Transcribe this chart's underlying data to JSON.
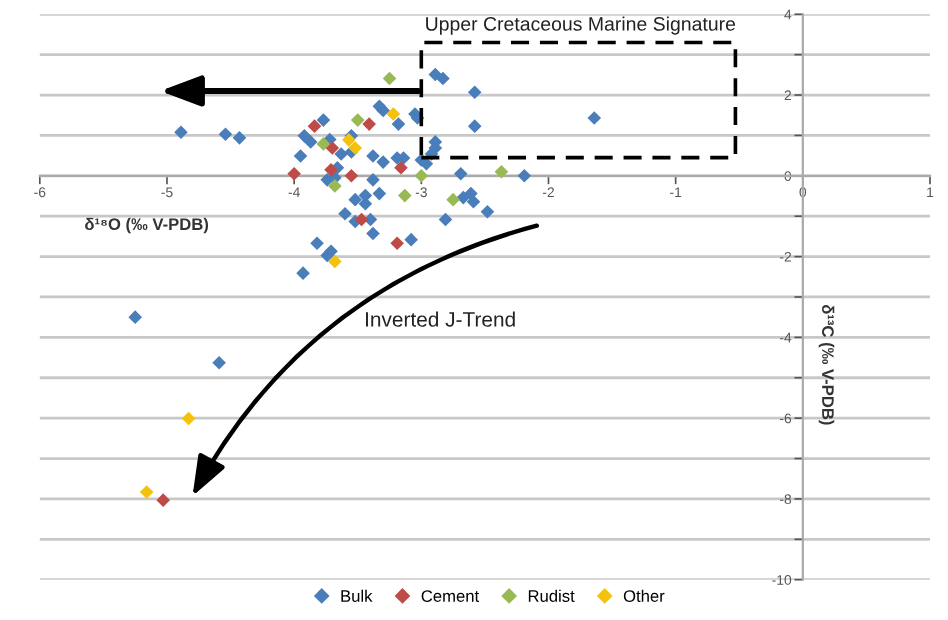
{
  "chart_data": {
    "type": "scatter",
    "xlabel": "δ¹⁸O (‰ V-PDB)",
    "ylabel": "δ¹³C (‰ V-PDB)",
    "annotations": [
      "Upper Cretaceous Marine Signature",
      "Inverted J-Trend"
    ],
    "xlim": [
      -6,
      1
    ],
    "xticks": [
      -6,
      -5,
      -4,
      -3,
      -2,
      -1,
      0,
      1
    ],
    "ylim": [
      -10,
      4
    ],
    "yticks": [
      -10,
      {
        "value": -9,
        "label": null
      },
      -8,
      {
        "value": -7,
        "label": null
      },
      -6,
      {
        "value": -5,
        "label": null
      },
      -4,
      {
        "value": -3,
        "label": null
      },
      -2,
      {
        "value": -1,
        "label": null
      },
      0,
      {
        "value": 1,
        "label": null
      },
      2,
      {
        "value": 3,
        "label": null
      },
      4
    ],
    "grid": "y",
    "legend": "bottom",
    "marker": "diamond",
    "series": [
      {
        "name": "Bulk",
        "color": "#4a7ebb",
        "x": [
          -4.89,
          -4.54,
          -4.43,
          -5.25,
          -4.59,
          -2.89,
          -2.83,
          -2.58,
          -2.58,
          -1.64,
          -3.05,
          -3.03,
          -2.89,
          -2.89,
          -2.92,
          -3.0,
          -2.96,
          -2.69,
          -2.19,
          -2.67,
          -2.61,
          -2.59,
          -2.48,
          -2.81,
          -3.08,
          -3.77,
          -3.92,
          -3.87,
          -3.95,
          -3.72,
          -3.63,
          -3.55,
          -3.55,
          -3.38,
          -3.33,
          -3.3,
          -3.18,
          -3.3,
          -3.19,
          -3.14,
          -3.74,
          -3.68,
          -3.66,
          -3.38,
          -3.33,
          -3.52,
          -3.44,
          -3.44,
          -3.6,
          -3.52,
          -3.4,
          -3.38,
          -3.82,
          -3.74,
          -3.71,
          -3.93
        ],
        "values": [
          1.08,
          1.03,
          0.94,
          -3.5,
          -4.63,
          2.51,
          2.41,
          2.07,
          1.23,
          1.43,
          1.53,
          1.43,
          0.84,
          0.69,
          0.54,
          0.39,
          0.3,
          0.05,
          0.0,
          -0.54,
          -0.44,
          -0.64,
          -0.89,
          -1.08,
          -1.58,
          1.38,
          0.99,
          0.84,
          0.49,
          0.9,
          0.54,
          0.99,
          0.59,
          0.49,
          1.72,
          1.62,
          1.28,
          0.34,
          0.44,
          0.44,
          -0.1,
          -0.05,
          0.2,
          -0.1,
          -0.44,
          -0.59,
          -0.49,
          -0.69,
          -0.94,
          -1.13,
          -1.08,
          -1.43,
          -1.67,
          -1.97,
          -1.87,
          -2.41
        ]
      },
      {
        "name": "Cement",
        "color": "#be4b48",
        "x": [
          -3.84,
          -3.7,
          -3.41,
          -4.0,
          -3.71,
          -3.55,
          -3.16,
          -3.47,
          -3.19,
          -5.03
        ],
        "values": [
          1.23,
          0.69,
          1.28,
          0.05,
          0.15,
          0.0,
          0.2,
          -1.08,
          -1.67,
          -8.03
        ]
      },
      {
        "name": "Rudist",
        "color": "#98b954",
        "x": [
          -2.37,
          -3.0,
          -2.75,
          -3.13,
          -3.25,
          -3.5,
          -3.77,
          -3.68
        ],
        "values": [
          0.1,
          0.0,
          -0.59,
          -0.49,
          2.41,
          1.38,
          0.79,
          -0.25
        ]
      },
      {
        "name": "Other",
        "color": "#f4c20d",
        "x": [
          -3.22,
          -3.57,
          -3.52,
          -3.68,
          -4.83,
          -5.16
        ],
        "values": [
          1.53,
          0.89,
          0.69,
          -2.12,
          -6.01,
          -7.83
        ]
      }
    ]
  }
}
